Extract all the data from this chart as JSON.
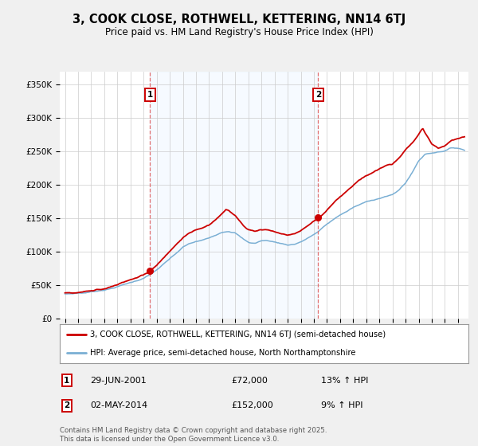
{
  "title": "3, COOK CLOSE, ROTHWELL, KETTERING, NN14 6TJ",
  "subtitle": "Price paid vs. HM Land Registry's House Price Index (HPI)",
  "ylabel_ticks": [
    "£0",
    "£50K",
    "£100K",
    "£150K",
    "£200K",
    "£250K",
    "£300K",
    "£350K"
  ],
  "ytick_values": [
    0,
    50000,
    100000,
    150000,
    200000,
    250000,
    300000,
    350000
  ],
  "ylim": [
    0,
    370000
  ],
  "xlim_start": 1994.6,
  "xlim_end": 2025.8,
  "sale1_x": 2001.49,
  "sale1_y": 72000,
  "sale1_label": "1",
  "sale2_x": 2014.33,
  "sale2_y": 152000,
  "sale2_label": "2",
  "line_color_price": "#cc0000",
  "line_color_hpi": "#7aafd4",
  "vline_color": "#e06060",
  "shade_color": "#ddeeff",
  "legend_label_price": "3, COOK CLOSE, ROTHWELL, KETTERING, NN14 6TJ (semi-detached house)",
  "legend_label_hpi": "HPI: Average price, semi-detached house, North Northamptonshire",
  "annotation1_date": "29-JUN-2001",
  "annotation1_price": "£72,000",
  "annotation1_hpi": "13% ↑ HPI",
  "annotation2_date": "02-MAY-2014",
  "annotation2_price": "£152,000",
  "annotation2_hpi": "9% ↑ HPI",
  "footnote": "Contains HM Land Registry data © Crown copyright and database right 2025.\nThis data is licensed under the Open Government Licence v3.0.",
  "background_color": "#f0f0f0",
  "plot_background": "#ffffff"
}
